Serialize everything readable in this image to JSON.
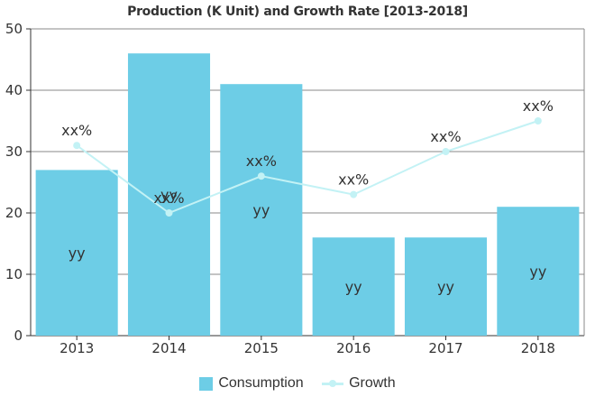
{
  "chart_data": {
    "type": "bar",
    "title": "Production (K Unit) and Growth Rate [2013-2018]",
    "categories": [
      "2013",
      "2014",
      "2015",
      "2016",
      "2017",
      "2018"
    ],
    "ylim": [
      0,
      50
    ],
    "yticks": [
      0,
      10,
      20,
      30,
      40,
      50
    ],
    "grid": true,
    "legend_position": "bottom",
    "series": [
      {
        "name": "Consumption",
        "type": "bar",
        "values": [
          27,
          46,
          41,
          16,
          16,
          21
        ],
        "labels": [
          "yy",
          "yy",
          "yy",
          "yy",
          "yy",
          "yy"
        ],
        "color": "#6dcde6"
      },
      {
        "name": "Growth",
        "type": "line",
        "values": [
          31,
          20,
          26,
          23,
          30,
          35
        ],
        "labels": [
          "xx%",
          "xx%",
          "xx%",
          "xx%",
          "xx%",
          "xx%"
        ],
        "color": "#c3f2f5"
      }
    ]
  }
}
